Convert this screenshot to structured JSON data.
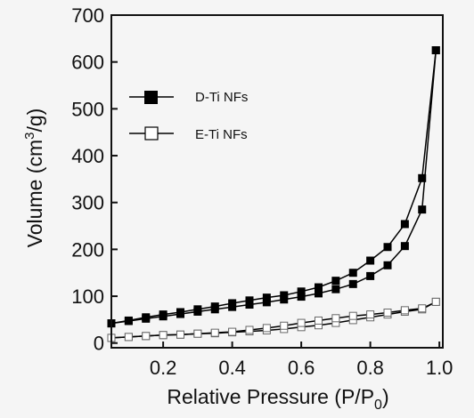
{
  "chart_data": {
    "type": "line",
    "title": "",
    "xlabel": {
      "main": "Relative Pressure (P/P",
      "sub": "0",
      "end": ")"
    },
    "ylabel": {
      "main": "Volume (cm",
      "sup": "3",
      "end": "/g)"
    },
    "xlim": [
      0.05,
      1.01
    ],
    "ylim": [
      -10,
      700
    ],
    "xticks": [
      0.2,
      0.4,
      0.6,
      0.8,
      1.0
    ],
    "xtick_labels": [
      "0.2",
      "0.4",
      "0.6",
      "0.8",
      "1.0"
    ],
    "yticks": [
      0,
      100,
      200,
      300,
      400,
      500,
      600,
      700
    ],
    "ytick_labels": [
      "0",
      "100",
      "200",
      "300",
      "400",
      "500",
      "600",
      "700"
    ],
    "legend_position": "upper-left",
    "grid": false,
    "series": [
      {
        "name": "D-Ti NFs",
        "marker": "filled-square",
        "color": "#000000",
        "adsorption": {
          "x": [
            0.05,
            0.1,
            0.15,
            0.2,
            0.25,
            0.3,
            0.35,
            0.4,
            0.45,
            0.5,
            0.55,
            0.6,
            0.65,
            0.7,
            0.75,
            0.8,
            0.85,
            0.9,
            0.95,
            0.99
          ],
          "y": [
            42,
            47,
            52,
            57,
            62,
            67,
            72,
            77,
            82,
            87,
            93,
            99,
            106,
            115,
            126,
            143,
            166,
            207,
            285,
            625
          ]
        },
        "desorption": {
          "x": [
            0.99,
            0.95,
            0.9,
            0.85,
            0.8,
            0.75,
            0.7,
            0.65,
            0.6,
            0.55,
            0.5,
            0.45,
            0.4,
            0.35,
            0.3,
            0.25,
            0.2,
            0.15,
            0.1,
            0.05
          ],
          "y": [
            625,
            352,
            254,
            205,
            176,
            150,
            133,
            119,
            110,
            102,
            97,
            91,
            85,
            78,
            72,
            66,
            61,
            55,
            48,
            42
          ]
        }
      },
      {
        "name": "E-Ti NFs",
        "marker": "open-square",
        "color": "#000000",
        "adsorption": {
          "x": [
            0.05,
            0.1,
            0.15,
            0.2,
            0.25,
            0.3,
            0.35,
            0.4,
            0.45,
            0.5,
            0.55,
            0.6,
            0.65,
            0.7,
            0.75,
            0.8,
            0.85,
            0.9,
            0.95,
            0.99
          ],
          "y": [
            11,
            13,
            15,
            17,
            18,
            20,
            21,
            23,
            25,
            27,
            30,
            34,
            38,
            43,
            49,
            55,
            61,
            67,
            72,
            88
          ]
        },
        "desorption": {
          "x": [
            0.99,
            0.95,
            0.9,
            0.85,
            0.8,
            0.75,
            0.7,
            0.65,
            0.6,
            0.55,
            0.5,
            0.45,
            0.4,
            0.35,
            0.3,
            0.25,
            0.2,
            0.15,
            0.1,
            0.05
          ],
          "y": [
            88,
            74,
            70,
            65,
            61,
            58,
            53,
            48,
            43,
            37,
            32,
            28,
            24,
            22,
            20,
            18,
            17,
            15,
            13,
            11
          ]
        }
      }
    ]
  }
}
